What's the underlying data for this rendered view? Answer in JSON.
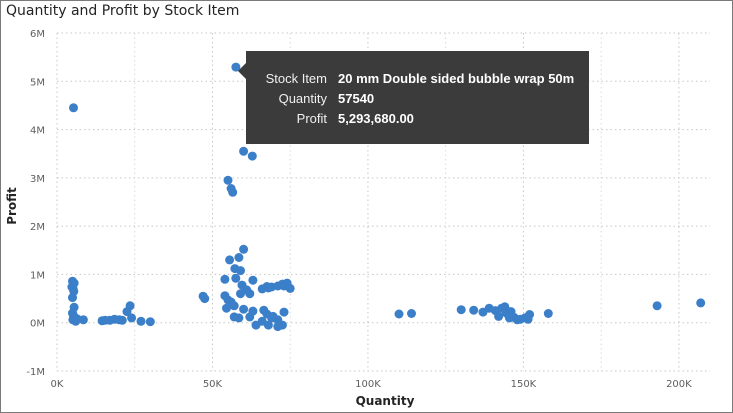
{
  "chart_data": {
    "type": "scatter",
    "title": "Quantity and Profit by Stock Item",
    "xlabel": "Quantity",
    "ylabel": "Profit",
    "xlim": [
      0,
      210000
    ],
    "ylim": [
      -1000000,
      6000000
    ],
    "x_ticks": [
      0,
      50000,
      100000,
      150000,
      200000
    ],
    "x_tick_labels": [
      "0K",
      "50K",
      "100K",
      "150K",
      "200K"
    ],
    "y_ticks": [
      -1000000,
      0,
      1000000,
      2000000,
      3000000,
      4000000,
      5000000,
      6000000
    ],
    "y_tick_labels": [
      "-1M",
      "0M",
      "1M",
      "2M",
      "3M",
      "4M",
      "5M",
      "6M"
    ],
    "grid": true,
    "point_color": "#3c7fc9",
    "points": [
      [
        57540,
        5293680
      ],
      [
        5300,
        4450000
      ],
      [
        60000,
        3550000
      ],
      [
        62800,
        3450000
      ],
      [
        55000,
        2950000
      ],
      [
        56000,
        2780000
      ],
      [
        56500,
        2700000
      ],
      [
        60000,
        1520000
      ],
      [
        58500,
        1350000
      ],
      [
        55500,
        1300000
      ],
      [
        57200,
        1120000
      ],
      [
        59000,
        1080000
      ],
      [
        54000,
        900000
      ],
      [
        57500,
        920000
      ],
      [
        63000,
        880000
      ],
      [
        59500,
        780000
      ],
      [
        61000,
        680000
      ],
      [
        59000,
        600000
      ],
      [
        62000,
        600000
      ],
      [
        66000,
        700000
      ],
      [
        67500,
        750000
      ],
      [
        69000,
        740000
      ],
      [
        71000,
        760000
      ],
      [
        72500,
        800000
      ],
      [
        74000,
        820000
      ],
      [
        75000,
        710000
      ],
      [
        73000,
        760000
      ],
      [
        68000,
        720000
      ],
      [
        54000,
        560000
      ],
      [
        55000,
        470000
      ],
      [
        56000,
        430000
      ],
      [
        57000,
        350000
      ],
      [
        54500,
        300000
      ],
      [
        60000,
        280000
      ],
      [
        63000,
        240000
      ],
      [
        62000,
        120000
      ],
      [
        57000,
        120000
      ],
      [
        58500,
        100000
      ],
      [
        66500,
        260000
      ],
      [
        67500,
        180000
      ],
      [
        69000,
        100000
      ],
      [
        71000,
        60000
      ],
      [
        73000,
        220000
      ],
      [
        66000,
        30000
      ],
      [
        64000,
        -50000
      ],
      [
        68000,
        -50000
      ],
      [
        71000,
        -80000
      ],
      [
        72500,
        -50000
      ],
      [
        69500,
        130000
      ],
      [
        47000,
        550000
      ],
      [
        47500,
        500000
      ],
      [
        5000,
        860000
      ],
      [
        5500,
        820000
      ],
      [
        4800,
        740000
      ],
      [
        5200,
        700000
      ],
      [
        5400,
        650000
      ],
      [
        5000,
        520000
      ],
      [
        5500,
        320000
      ],
      [
        5000,
        200000
      ],
      [
        5300,
        150000
      ],
      [
        5600,
        100000
      ],
      [
        5100,
        60000
      ],
      [
        6000,
        30000
      ],
      [
        6500,
        80000
      ],
      [
        8500,
        60000
      ],
      [
        14500,
        40000
      ],
      [
        15500,
        50000
      ],
      [
        17000,
        50000
      ],
      [
        18500,
        70000
      ],
      [
        20000,
        60000
      ],
      [
        21000,
        50000
      ],
      [
        22500,
        230000
      ],
      [
        23500,
        350000
      ],
      [
        24000,
        100000
      ],
      [
        27000,
        30000
      ],
      [
        30000,
        20000
      ],
      [
        110000,
        180000
      ],
      [
        114000,
        190000
      ],
      [
        130000,
        270000
      ],
      [
        134000,
        260000
      ],
      [
        137000,
        220000
      ],
      [
        139000,
        300000
      ],
      [
        141000,
        250000
      ],
      [
        142000,
        130000
      ],
      [
        143000,
        300000
      ],
      [
        144000,
        330000
      ],
      [
        144500,
        200000
      ],
      [
        145000,
        180000
      ],
      [
        145500,
        100000
      ],
      [
        146000,
        230000
      ],
      [
        147000,
        110000
      ],
      [
        148000,
        60000
      ],
      [
        149000,
        70000
      ],
      [
        150500,
        100000
      ],
      [
        152000,
        170000
      ],
      [
        151500,
        70000
      ],
      [
        158000,
        190000
      ],
      [
        193000,
        350000
      ],
      [
        207000,
        410000
      ]
    ]
  },
  "tooltip": {
    "rows": [
      {
        "label": "Stock Item",
        "value": "20 mm Double sided bubble wrap 50m"
      },
      {
        "label": "Quantity",
        "value": "57540"
      },
      {
        "label": "Profit",
        "value": "5,293,680.00"
      }
    ]
  }
}
